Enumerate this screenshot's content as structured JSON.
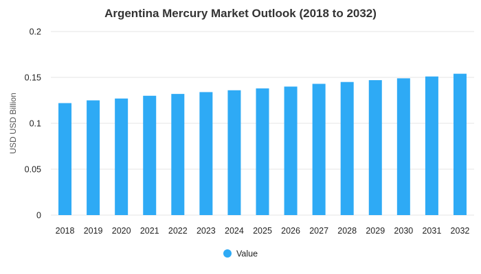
{
  "chart_data": {
    "type": "bar",
    "title": "Argentina Mercury Market Outlook (2018 to 2032)",
    "xlabel": "",
    "ylabel": "USD USD Billion",
    "ylim": [
      0,
      0.2
    ],
    "yticks": [
      "0",
      "0.05",
      "0.1",
      "0.15",
      "0.2"
    ],
    "grid": true,
    "legend_position": "bottom",
    "categories": [
      "2018",
      "2019",
      "2020",
      "2021",
      "2022",
      "2023",
      "2024",
      "2025",
      "2026",
      "2027",
      "2028",
      "2029",
      "2030",
      "2031",
      "2032"
    ],
    "series": [
      {
        "name": "Value",
        "color": "#2eaaf5",
        "values": [
          0.122,
          0.125,
          0.127,
          0.13,
          0.132,
          0.134,
          0.136,
          0.138,
          0.14,
          0.143,
          0.145,
          0.147,
          0.149,
          0.151,
          0.154
        ]
      }
    ]
  }
}
